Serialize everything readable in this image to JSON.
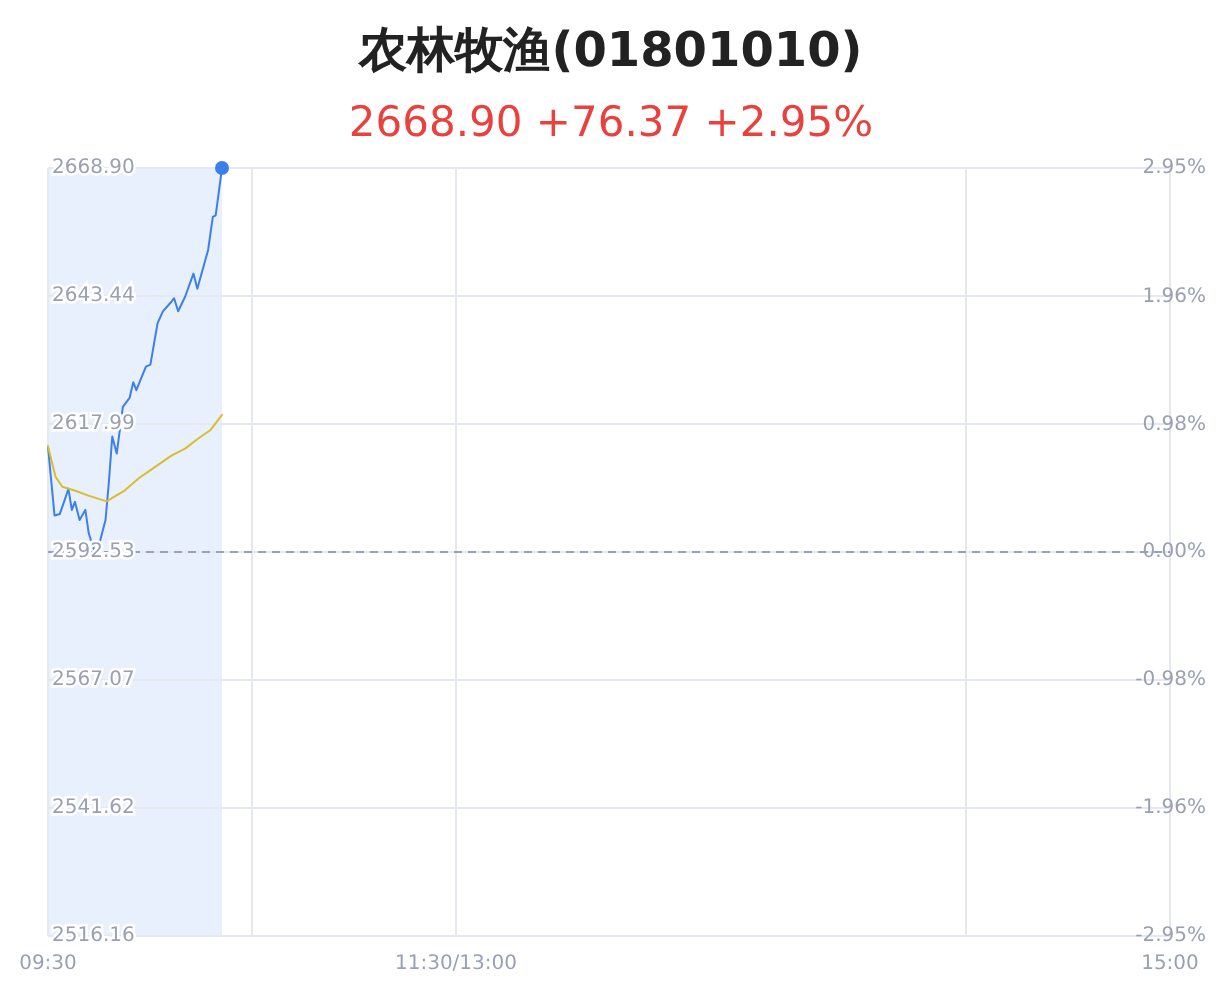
{
  "chart_data": {
    "type": "line",
    "title": "农林牧渔(01801010)",
    "subtitle": "2668.90 +76.37 +2.95%",
    "xlim": [
      9.5,
      15
    ],
    "xticks": [
      {
        "value": 9.5,
        "label": "09:30"
      },
      {
        "value": 10.5,
        "label": null
      },
      {
        "value": 11.5,
        "label": "11:30/13:00"
      },
      {
        "value": 14,
        "label": null
      },
      {
        "value": 15,
        "label": "15:00"
      }
    ],
    "ylim": [
      2516.16,
      2668.9
    ],
    "yticks": [
      2516.16,
      2541.62,
      2567.07,
      2592.53,
      2617.99,
      2643.44,
      {
        "value": 2668.9,
        "label": "2668.90"
      }
    ],
    "y2lim": [
      -2.95,
      2.95
    ],
    "y2ticks": [
      {
        "value": -2.95,
        "label": "-2.95%"
      },
      {
        "value": -1.96,
        "label": "-1.96%"
      },
      {
        "value": -0.98,
        "label": "-0.98%"
      },
      {
        "value": 0,
        "label": "0.00%"
      },
      {
        "value": 0.98,
        "label": "0.98%"
      },
      {
        "value": 1.96,
        "label": "1.96%"
      },
      {
        "value": 2.95,
        "label": "2.95%"
      }
    ],
    "grid": true,
    "marker": "none",
    "line_style": "solid",
    "series": [
      {
        "color": "#3d7fe8",
        "x": [
          9.5,
          9.532,
          9.558,
          9.587,
          9.6,
          9.617,
          9.632,
          9.655,
          9.683,
          9.7,
          9.73,
          9.752,
          9.782,
          9.798,
          9.815,
          9.837,
          9.867,
          9.9,
          9.918,
          9.933,
          9.98,
          10.002,
          10.037,
          10.063,
          10.105,
          10.118,
          10.138,
          10.172,
          10.213,
          10.232,
          10.285,
          10.308,
          10.322,
          10.353
        ],
        "values": [
          2613.5,
          2599.8,
          2600.1,
          2603.5,
          2605.1,
          2600.9,
          2602.5,
          2598.9,
          2600.9,
          2596.2,
          2592.5,
          2594.2,
          2598.9,
          2606.2,
          2615.5,
          2612.1,
          2621.4,
          2623.2,
          2626.3,
          2624.7,
          2629.4,
          2629.8,
          2638.0,
          2640.4,
          2642.3,
          2643.0,
          2640.4,
          2643.3,
          2647.9,
          2644.9,
          2652.6,
          2659.2,
          2659.5,
          2668.9
        ]
      },
      {
        "color": "#d9bd2c",
        "x": [
          9.5,
          9.537,
          9.57,
          9.627,
          9.695,
          9.787,
          9.877,
          9.945,
          10.013,
          10.105,
          10.172,
          10.24,
          10.297,
          10.353
        ],
        "values": [
          2613.5,
          2607.5,
          2605.5,
          2604.8,
          2603.8,
          2602.6,
          2604.8,
          2607.2,
          2609.1,
          2611.7,
          2613.1,
          2615.2,
          2616.8,
          2619.8
        ]
      },
      {
        "type": "scatter",
        "marker": "circle",
        "color": "#3d7fe8",
        "x": [
          10.353
        ],
        "values": [
          2668.9
        ]
      }
    ],
    "ref_lines": [
      {
        "axis": "y",
        "value": 2592.53,
        "color": "#9aa0b8",
        "line_style": "dashed"
      }
    ],
    "bands": [
      {
        "axis": "x",
        "from": 9.5,
        "to": 10.353,
        "color": "#e8f0fd"
      }
    ]
  }
}
